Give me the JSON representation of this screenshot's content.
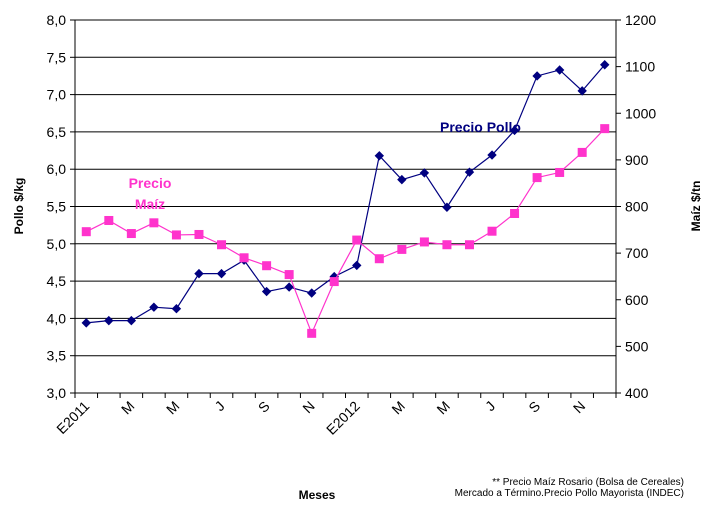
{
  "chart_data": {
    "type": "line",
    "xlabel": "Meses",
    "ylabel_left": "Pollo $/kg",
    "ylabel_right": "Maíz $/tn",
    "ylim_left": [
      3.0,
      8.0
    ],
    "ylim_right": [
      400,
      1200
    ],
    "yticks_left": [
      "3,0",
      "3,5",
      "4,0",
      "4,5",
      "5,0",
      "5,5",
      "6,0",
      "6,5",
      "7,0",
      "7,5",
      "8,0"
    ],
    "yticks_right": [
      "400",
      "500",
      "600",
      "700",
      "800",
      "900",
      "1000",
      "1100",
      "1200"
    ],
    "x_tick_labels": [
      {
        "index": 0,
        "label": "E2011"
      },
      {
        "index": 2,
        "label": "M"
      },
      {
        "index": 4,
        "label": "M"
      },
      {
        "index": 6,
        "label": "J"
      },
      {
        "index": 8,
        "label": "S"
      },
      {
        "index": 10,
        "label": "N"
      },
      {
        "index": 12,
        "label": "E2012"
      },
      {
        "index": 14,
        "label": "M"
      },
      {
        "index": 16,
        "label": "M"
      },
      {
        "index": 18,
        "label": "J"
      },
      {
        "index": 20,
        "label": "S"
      },
      {
        "index": 22,
        "label": "N"
      }
    ],
    "grid": true,
    "series": [
      {
        "name": "Precio Pollo",
        "axis": "left",
        "color": "#000080",
        "marker": "diamond",
        "values": [
          3.94,
          3.97,
          3.97,
          4.15,
          4.13,
          4.6,
          4.6,
          4.78,
          4.36,
          4.42,
          4.34,
          4.56,
          4.71,
          6.18,
          5.86,
          5.95,
          5.49,
          5.96,
          6.19,
          6.52,
          7.25,
          7.33,
          7.05,
          7.4
        ]
      },
      {
        "name": "Precio Maíz",
        "axis": "right",
        "color": "#FF33CC",
        "marker": "square",
        "values": [
          746,
          770,
          742,
          765,
          739,
          740,
          718,
          690,
          673,
          654,
          528,
          639,
          728,
          688,
          708,
          724,
          718,
          718,
          747,
          785,
          862,
          873,
          916,
          967
        ]
      }
    ],
    "labels": {
      "pollo_label": "Precio Pollo",
      "maiz_label_line1": "Precio",
      "maiz_label_line2": "Maíz"
    },
    "notes": [
      "** Precio Maíz Rosario (Bolsa de Cereales)",
      "Mercado a Término.Precio Pollo Mayorista (INDEC)"
    ]
  }
}
